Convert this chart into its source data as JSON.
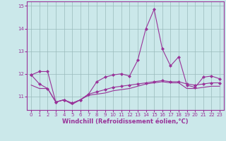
{
  "xlabel": "Windchill (Refroidissement éolien,°C)",
  "x": [
    0,
    1,
    2,
    3,
    4,
    5,
    6,
    7,
    8,
    9,
    10,
    11,
    12,
    13,
    14,
    15,
    16,
    17,
    18,
    19,
    20,
    21,
    22,
    23
  ],
  "line1": [
    11.95,
    12.1,
    12.1,
    10.75,
    10.85,
    10.7,
    10.85,
    11.1,
    11.65,
    11.85,
    11.95,
    12.0,
    11.9,
    12.6,
    14.0,
    14.85,
    13.1,
    12.35,
    12.75,
    11.5,
    11.4,
    11.85,
    11.9,
    11.78
  ],
  "line2": [
    11.95,
    11.55,
    11.35,
    10.75,
    10.85,
    10.7,
    10.85,
    11.1,
    11.2,
    11.3,
    11.4,
    11.45,
    11.5,
    11.55,
    11.6,
    11.65,
    11.7,
    11.65,
    11.65,
    11.55,
    11.5,
    11.55,
    11.6,
    11.6
  ],
  "line3": [
    11.5,
    11.35,
    11.35,
    10.75,
    10.85,
    10.65,
    10.85,
    11.05,
    11.1,
    11.15,
    11.25,
    11.3,
    11.35,
    11.45,
    11.55,
    11.6,
    11.65,
    11.6,
    11.6,
    11.35,
    11.35,
    11.4,
    11.45,
    11.45
  ],
  "line_color": "#993399",
  "bg_color": "#cbe8ea",
  "grid_color": "#99bbbb",
  "axis_color": "#993399",
  "ylim": [
    10.4,
    15.2
  ],
  "yticks": [
    11,
    12,
    13,
    14,
    15
  ],
  "marker": "D",
  "markersize": 2.0,
  "linewidth": 0.8,
  "tick_fontsize": 5.0,
  "xlabel_fontsize": 6.0
}
